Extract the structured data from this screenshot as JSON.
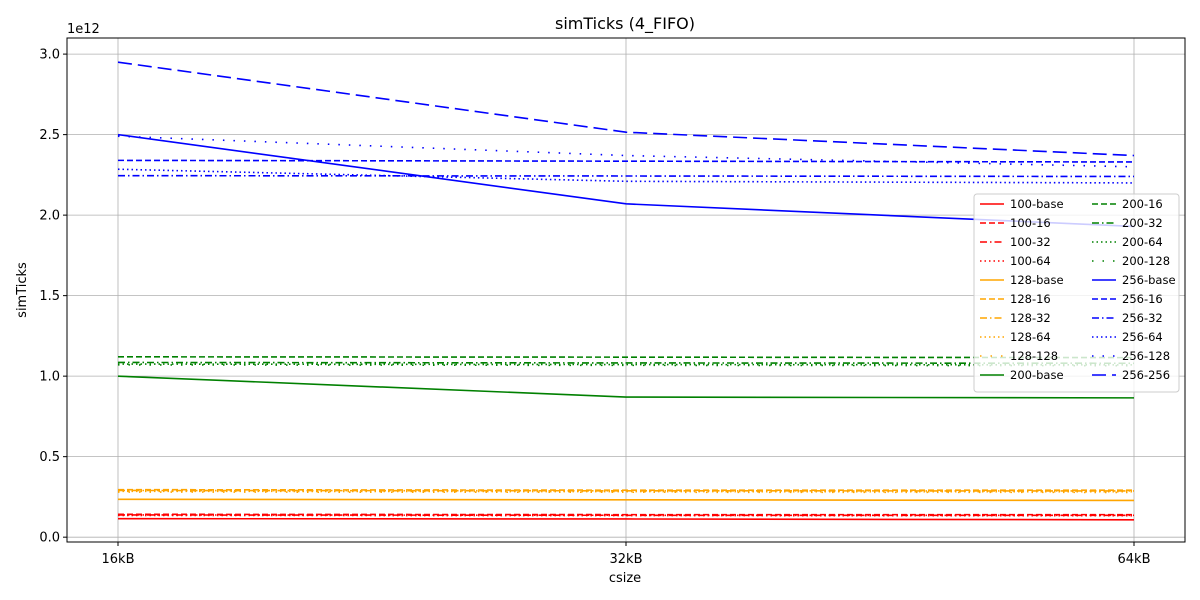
{
  "chart_data": {
    "type": "line",
    "title": "simTicks (4_FIFO)",
    "xlabel": "csize",
    "ylabel": "simTicks",
    "y_offset_label": "1e12",
    "categories": [
      "16kB",
      "32kB",
      "64kB"
    ],
    "ylim": [
      -0.03,
      3.1
    ],
    "y_ticks": [
      0.0,
      0.5,
      1.0,
      1.5,
      2.0,
      2.5,
      3.0
    ],
    "y_tick_labels": [
      "0.0",
      "0.5",
      "1.0",
      "1.5",
      "2.0",
      "2.5",
      "3.0"
    ],
    "grid": true,
    "legend": {
      "placement": "right",
      "columns": 2
    },
    "series": [
      {
        "name": "100-base",
        "color": "#ff0000",
        "dash": "solid",
        "values": [
          0.115,
          0.113,
          0.108
        ]
      },
      {
        "name": "100-16",
        "color": "#ff0000",
        "dash": "dashed",
        "values": [
          0.142,
          0.14,
          0.14
        ]
      },
      {
        "name": "100-32",
        "color": "#ff0000",
        "dash": "dashdot",
        "values": [
          0.138,
          0.136,
          0.136
        ]
      },
      {
        "name": "100-64",
        "color": "#ff0000",
        "dash": "dotted",
        "values": [
          0.135,
          0.134,
          0.133
        ]
      },
      {
        "name": "128-base",
        "color": "#ffa500",
        "dash": "solid",
        "values": [
          0.235,
          0.232,
          0.228
        ]
      },
      {
        "name": "128-16",
        "color": "#ffa500",
        "dash": "dashed",
        "values": [
          0.295,
          0.292,
          0.292
        ]
      },
      {
        "name": "128-32",
        "color": "#ffa500",
        "dash": "dashdot",
        "values": [
          0.29,
          0.288,
          0.287
        ]
      },
      {
        "name": "128-64",
        "color": "#ffa500",
        "dash": "dotted",
        "values": [
          0.285,
          0.283,
          0.282
        ]
      },
      {
        "name": "128-128",
        "color": "#ffa500",
        "dash": "loosedot",
        "values": [
          0.28,
          0.279,
          0.278
        ]
      },
      {
        "name": "200-base",
        "color": "#008000",
        "dash": "solid",
        "values": [
          1.0,
          0.87,
          0.865
        ]
      },
      {
        "name": "200-16",
        "color": "#008000",
        "dash": "dashed",
        "values": [
          1.12,
          1.118,
          1.115
        ]
      },
      {
        "name": "200-32",
        "color": "#008000",
        "dash": "dashdot",
        "values": [
          1.085,
          1.082,
          1.08
        ]
      },
      {
        "name": "200-64",
        "color": "#008000",
        "dash": "dotted",
        "values": [
          1.075,
          1.072,
          1.07
        ]
      },
      {
        "name": "200-128",
        "color": "#008000",
        "dash": "loosedot",
        "values": [
          1.07,
          1.067,
          1.065
        ]
      },
      {
        "name": "256-base",
        "color": "#0000ff",
        "dash": "solid",
        "values": [
          2.5,
          2.07,
          1.93
        ]
      },
      {
        "name": "256-16",
        "color": "#0000ff",
        "dash": "dashed",
        "values": [
          2.34,
          2.335,
          2.33
        ]
      },
      {
        "name": "256-32",
        "color": "#0000ff",
        "dash": "dashdot",
        "values": [
          2.245,
          2.243,
          2.24
        ]
      },
      {
        "name": "256-64",
        "color": "#0000ff",
        "dash": "dotted",
        "values": [
          2.285,
          2.21,
          2.2
        ]
      },
      {
        "name": "256-128",
        "color": "#0000ff",
        "dash": "loosedot",
        "values": [
          2.49,
          2.37,
          2.3
        ]
      },
      {
        "name": "256-256",
        "color": "#0000ff",
        "dash": "longdash",
        "values": [
          2.95,
          2.515,
          2.37
        ]
      }
    ]
  }
}
